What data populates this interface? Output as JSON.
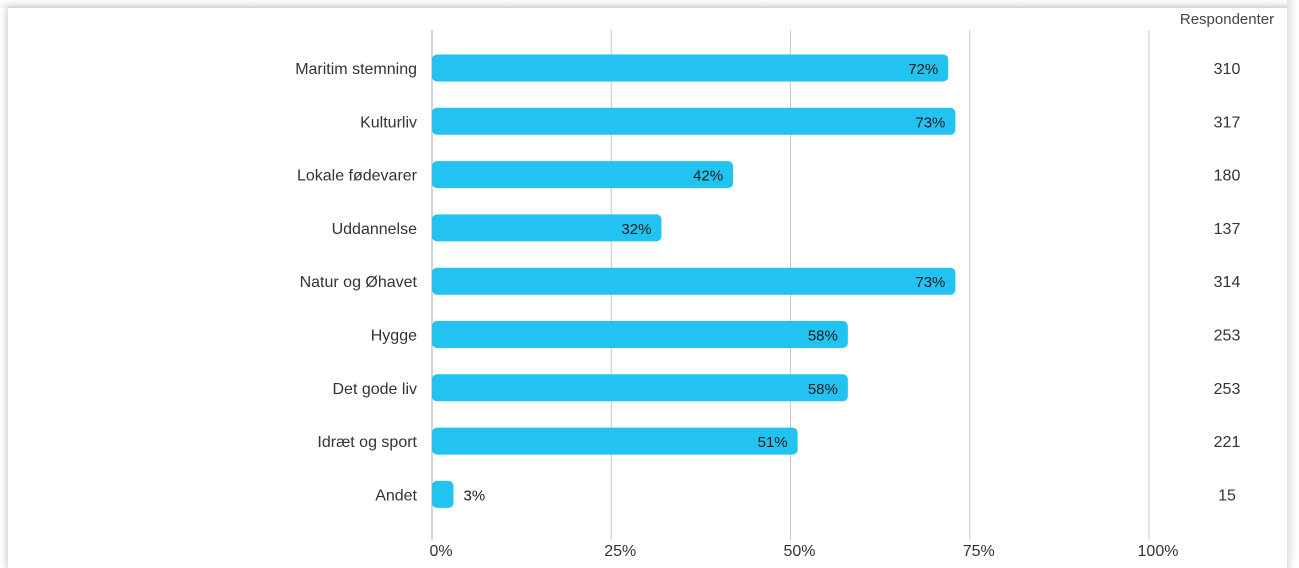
{
  "chart_data": {
    "type": "bar",
    "orientation": "horizontal",
    "categories": [
      "Maritim stemning",
      "Kulturliv",
      "Lokale fødevarer",
      "Uddannelse",
      "Natur og Øhavet",
      "Hygge",
      "Det gode liv",
      "Idræt og sport",
      "Andet"
    ],
    "values": [
      72,
      73,
      42,
      32,
      73,
      58,
      58,
      51,
      3
    ],
    "value_labels": [
      "72%",
      "73%",
      "42%",
      "32%",
      "73%",
      "58%",
      "58%",
      "51%",
      "3%"
    ],
    "respondents_header": "Respondenter",
    "respondents": [
      "310",
      "317",
      "180",
      "137",
      "314",
      "253",
      "253",
      "221",
      "15"
    ],
    "x_ticks": [
      0,
      25,
      50,
      75,
      100
    ],
    "x_tick_labels": [
      "0%",
      "25%",
      "50%",
      "75%",
      "100%"
    ],
    "xlim": [
      0,
      100
    ],
    "grid": true,
    "bar_color": "#22c3f0",
    "grid_color": "#c8c8c8"
  }
}
